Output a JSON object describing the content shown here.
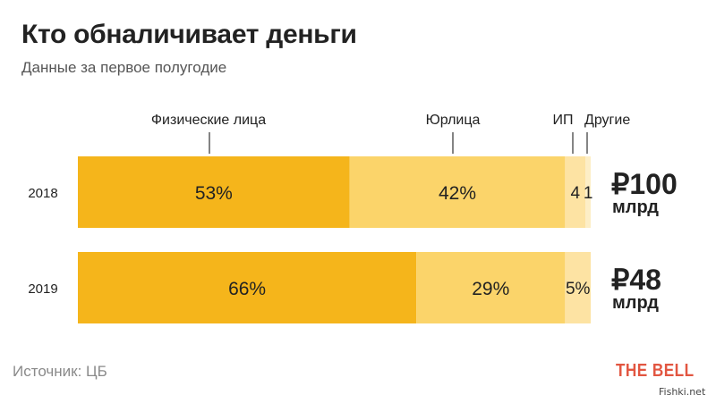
{
  "header": {
    "title": "Кто обналичивает деньги",
    "subtitle": "Данные за первое полугодие"
  },
  "footer": {
    "source": "Источник: ЦБ",
    "logo": "THE BELL",
    "watermark": "Fishki.net"
  },
  "colors": {
    "individuals": "#f5b51b",
    "legal_entities": "#fbd46a",
    "ip": "#fde3a3",
    "other": "#fdeec6",
    "text_dark": "#222222"
  },
  "chart_data": {
    "type": "bar",
    "orientation": "horizontal",
    "stacked": "100%",
    "title": "Кто обналичивает деньги",
    "subtitle": "Данные за первое полугодие",
    "categories": [
      "2018",
      "2019"
    ],
    "series": [
      {
        "name": "Физические лица",
        "values": [
          53,
          66
        ],
        "labels": [
          "53%",
          "66%"
        ]
      },
      {
        "name": "Юрлица",
        "values": [
          42,
          29
        ],
        "labels": [
          "42%",
          "29%"
        ]
      },
      {
        "name": "ИП",
        "values": [
          4,
          5
        ],
        "labels": [
          "4",
          "5%"
        ]
      },
      {
        "name": "Другие",
        "values": [
          1,
          0
        ],
        "labels": [
          "1",
          ""
        ]
      }
    ],
    "totals": [
      {
        "amount": "₽100",
        "unit": "млрд"
      },
      {
        "amount": "₽48",
        "unit": "млрд"
      }
    ],
    "legend_placement": "top",
    "grid": false,
    "xlim": [
      0,
      100
    ]
  }
}
